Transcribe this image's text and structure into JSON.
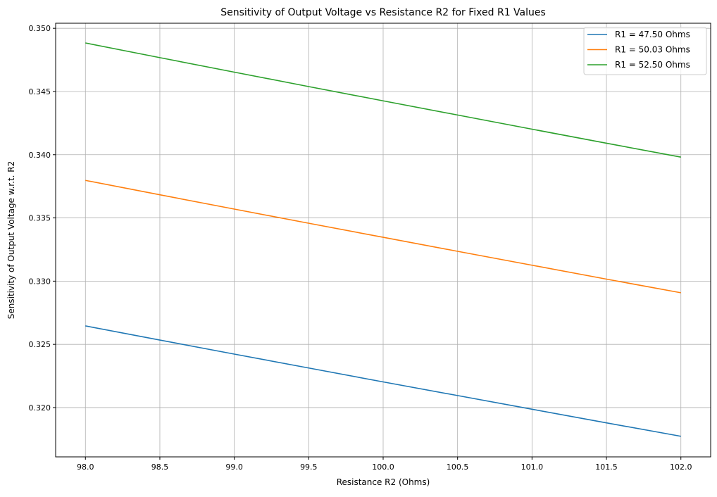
{
  "chart_data": {
    "type": "line",
    "title": "Sensitivity of Output Voltage vs Resistance R2 for Fixed R1 Values",
    "xlabel": "Resistance R2 (Ohms)",
    "ylabel": "Sensitivity of Output Voltage w.r.t. R2",
    "xlim": [
      97.8,
      102.2
    ],
    "ylim": [
      0.3161,
      0.3504
    ],
    "xticks": [
      "98.0",
      "98.5",
      "99.0",
      "99.5",
      "100.0",
      "100.5",
      "101.0",
      "101.5",
      "102.0"
    ],
    "yticks": [
      "0.320",
      "0.325",
      "0.330",
      "0.335",
      "0.340",
      "0.345",
      "0.350"
    ],
    "grid": true,
    "legend_position": "top-right",
    "x": [
      98.0,
      98.5,
      99.0,
      99.5,
      100.0,
      100.5,
      101.0,
      101.5,
      102.0
    ],
    "series": [
      {
        "name": "R1 = 47.50 Ohms",
        "color": "#1f77b4",
        "values": [
          0.32646,
          0.32534,
          0.32423,
          0.32313,
          0.32203,
          0.32095,
          0.31987,
          0.31879,
          0.31773
        ]
      },
      {
        "name": "R1 = 50.03 Ohms",
        "color": "#ff7f0e",
        "values": [
          0.33797,
          0.33683,
          0.3357,
          0.33458,
          0.33347,
          0.33236,
          0.33126,
          0.33016,
          0.32908
        ]
      },
      {
        "name": "R1 = 52.50 Ohms",
        "color": "#2ca02c",
        "values": [
          0.34884,
          0.34768,
          0.34653,
          0.34539,
          0.34426,
          0.34314,
          0.34202,
          0.34091,
          0.33981
        ]
      }
    ]
  }
}
